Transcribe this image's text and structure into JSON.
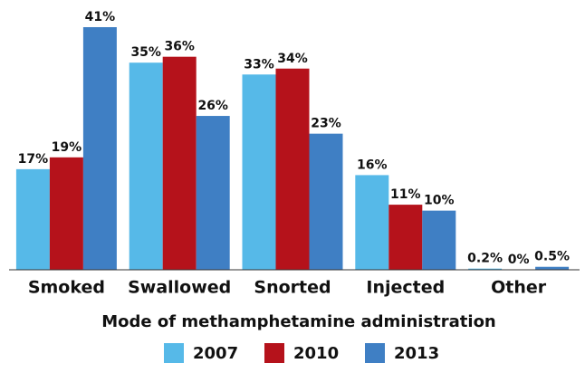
{
  "chart_data": {
    "type": "bar",
    "x_label": "Mode of methamphetamine administration",
    "categories": [
      "Smoked",
      "Swallowed",
      "Snorted",
      "Injected",
      "Other"
    ],
    "series": [
      {
        "name": "2007",
        "color": "#56b9e8",
        "values": [
          17,
          35,
          33,
          16,
          0.2
        ],
        "value_labels": [
          "17%",
          "35%",
          "33%",
          "16%",
          "0.2%"
        ]
      },
      {
        "name": "2010",
        "color": "#b5121b",
        "values": [
          19,
          36,
          34,
          11,
          0
        ],
        "value_labels": [
          "19%",
          "36%",
          "34%",
          "11%",
          "0%"
        ]
      },
      {
        "name": "2013",
        "color": "#3f7fc4",
        "values": [
          41,
          26,
          23,
          10,
          0.5
        ],
        "value_labels": [
          "41%",
          "26%",
          "23%",
          "10%",
          "0.5%"
        ]
      }
    ],
    "legend": "bottom"
  }
}
